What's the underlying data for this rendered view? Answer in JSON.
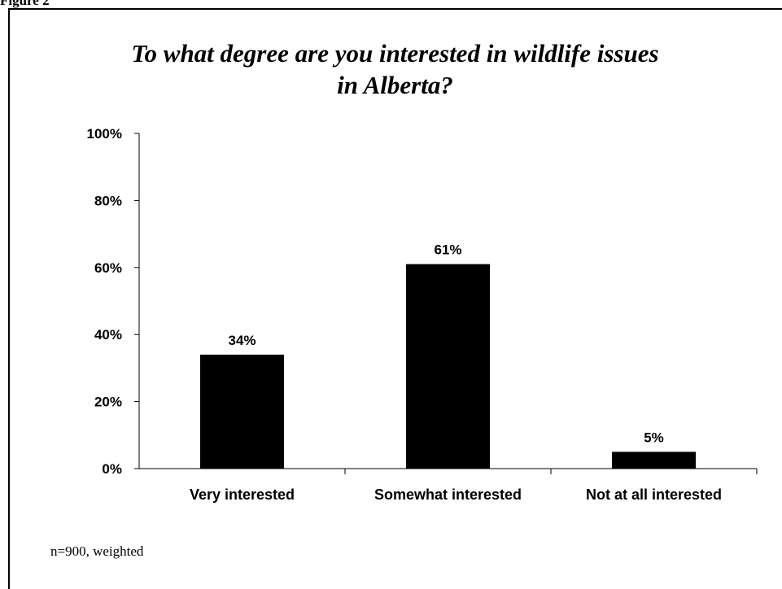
{
  "figure_label": "Figure 2",
  "chart_data": {
    "type": "bar",
    "title_lines": [
      "To what degree are you interested in wildlife issues",
      "in Alberta?"
    ],
    "categories": [
      "Very interested",
      "Somewhat interested",
      "Not at all interested"
    ],
    "values": [
      34,
      61,
      5
    ],
    "data_labels": [
      "34%",
      "61%",
      "5%"
    ],
    "y_ticks": [
      "0%",
      "20%",
      "40%",
      "60%",
      "80%",
      "100%"
    ],
    "ylim": [
      0,
      100
    ],
    "bar_color": "#000000",
    "grid": false,
    "legend": false
  },
  "footnote": "n=900, weighted"
}
